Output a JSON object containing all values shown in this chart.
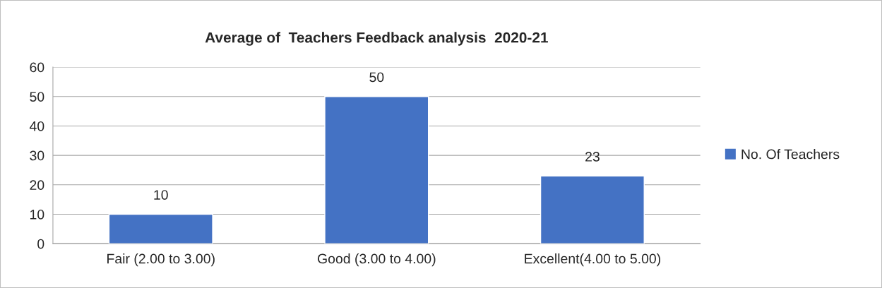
{
  "chart_data": {
    "type": "bar",
    "title": "Average of  Teachers Feedback analysis  2020-21",
    "categories": [
      "Fair (2.00 to 3.00)",
      "Good (3.00 to 4.00)",
      "Excellent(4.00 to 5.00)"
    ],
    "series": [
      {
        "name": "No. Of Teachers",
        "color": "#4472c4",
        "values": [
          10,
          50,
          23
        ]
      }
    ],
    "ylim": [
      0,
      60
    ],
    "yticks": [
      0,
      10,
      20,
      30,
      40,
      50,
      60
    ],
    "grid": "y",
    "legend": "right",
    "data_labels": true
  }
}
